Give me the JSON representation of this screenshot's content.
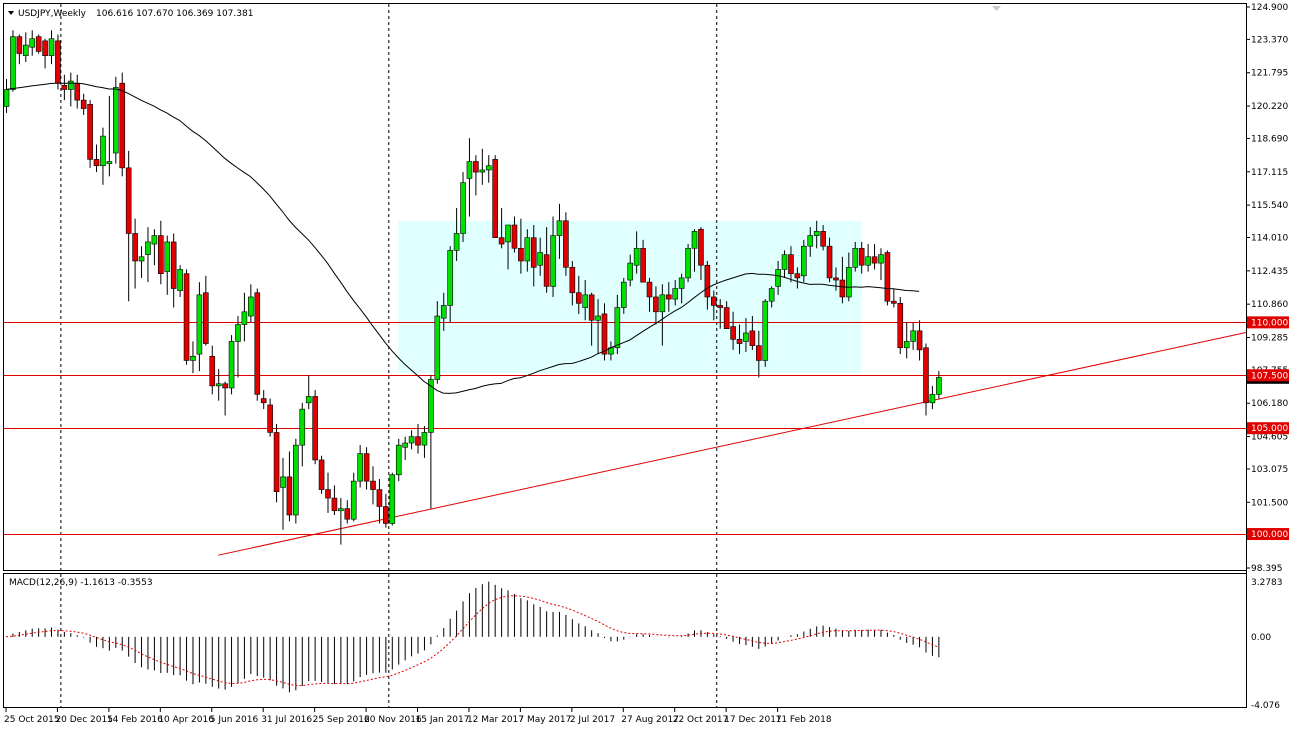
{
  "header": {
    "symbol": "USDJPY,Weekly",
    "ohlc": "106.616 107.670 106.369 107.381"
  },
  "macd_header": "MACD(12,26,9) -1.1613 -0.3553",
  "colors": {
    "bull": "#00e000",
    "bear": "#e00000",
    "ma": "#000000",
    "level": "#e00000",
    "range_box": "#e0ffff",
    "grid": "#000000",
    "macd_signal": "#e00000"
  },
  "chart_data": {
    "type": "candlestick",
    "timeframe": "Weekly",
    "price_axis": {
      "range": [
        98.395,
        124.9
      ],
      "labels": [
        "124.900",
        "123.370",
        "121.795",
        "120.220",
        "118.690",
        "117.115",
        "115.540",
        "114.010",
        "112.435",
        "110.860",
        "109.285",
        "107.755",
        "106.180",
        "104.605",
        "103.075",
        "101.500",
        "98.395"
      ]
    },
    "time_axis": {
      "labels": [
        "25 Oct 2015",
        "20 Dec 2015",
        "14 Feb 2016",
        "10 Apr 2016",
        "5 Jun 2016",
        "31 Jul 2016",
        "25 Sep 2016",
        "20 Nov 2016",
        "15 Jan 2017",
        "12 Mar 2017",
        "7 May 2017",
        "2 Jul 2017",
        "27 Aug 2017",
        "22 Oct 2017",
        "17 Dec 2017",
        "11 Feb 2018"
      ]
    },
    "horizontal_levels": [
      {
        "price": 110.0,
        "label": "110.000"
      },
      {
        "price": 107.5,
        "label": "107.500"
      },
      {
        "price": 105.0,
        "label": "105.000"
      },
      {
        "price": 100.0,
        "label": "100.000"
      }
    ],
    "current_price": {
      "price": 107.381,
      "label": "107.381"
    },
    "range_box": {
      "from_index": 61,
      "to_index": 133,
      "price_low": 107.6,
      "price_high": 114.8
    },
    "trendline": {
      "from_index": 33,
      "from_price": 99.0,
      "to_index": 153,
      "to_price": 106.9
    },
    "vertical_separators": [
      9,
      60,
      111
    ],
    "candles": [
      [
        120.2,
        121.5,
        119.9,
        121.0
      ],
      [
        121.0,
        123.8,
        120.9,
        123.5
      ],
      [
        123.5,
        123.6,
        122.2,
        122.7
      ],
      [
        122.6,
        123.7,
        122.3,
        123.1
      ],
      [
        123.0,
        123.8,
        122.6,
        123.4
      ],
      [
        123.5,
        123.6,
        122.7,
        122.8
      ],
      [
        123.3,
        123.4,
        122.0,
        122.6
      ],
      [
        122.6,
        123.8,
        122.2,
        123.4
      ],
      [
        123.3,
        123.6,
        121.0,
        121.3
      ],
      [
        121.2,
        121.7,
        120.5,
        121.0
      ],
      [
        121.0,
        121.8,
        120.2,
        121.4
      ],
      [
        121.3,
        121.7,
        120.1,
        120.5
      ],
      [
        120.5,
        120.8,
        119.8,
        120.1
      ],
      [
        120.3,
        120.5,
        117.3,
        117.7
      ],
      [
        117.7,
        118.4,
        117.1,
        117.4
      ],
      [
        117.4,
        119.2,
        116.5,
        118.8
      ],
      [
        117.5,
        120.7,
        116.9,
        117.6
      ],
      [
        118.0,
        121.6,
        117.5,
        121.1
      ],
      [
        121.3,
        121.8,
        116.9,
        117.3
      ],
      [
        117.3,
        118.1,
        111.0,
        114.2
      ],
      [
        114.2,
        114.9,
        111.6,
        112.9
      ],
      [
        112.9,
        113.6,
        112.1,
        113.1
      ],
      [
        113.2,
        114.5,
        111.9,
        113.8
      ],
      [
        113.7,
        114.4,
        112.7,
        114.1
      ],
      [
        114.1,
        114.8,
        111.8,
        112.3
      ],
      [
        112.4,
        114.1,
        111.3,
        113.8
      ],
      [
        113.8,
        114.2,
        110.7,
        111.6
      ],
      [
        111.5,
        112.7,
        111.2,
        112.5
      ],
      [
        112.3,
        112.5,
        108.0,
        108.2
      ],
      [
        108.2,
        109.1,
        107.6,
        108.4
      ],
      [
        108.5,
        111.9,
        107.7,
        111.3
      ],
      [
        111.4,
        112.2,
        108.9,
        109.0
      ],
      [
        108.4,
        108.9,
        106.6,
        107.0
      ],
      [
        107.0,
        107.8,
        106.3,
        107.1
      ],
      [
        107.1,
        107.2,
        105.6,
        106.9
      ],
      [
        106.9,
        109.4,
        106.6,
        109.1
      ],
      [
        109.1,
        110.3,
        107.4,
        109.9
      ],
      [
        109.9,
        111.4,
        109.1,
        110.5
      ],
      [
        110.3,
        111.8,
        110.0,
        111.2
      ],
      [
        111.4,
        111.6,
        106.3,
        106.6
      ],
      [
        106.4,
        106.8,
        105.9,
        106.2
      ],
      [
        106.1,
        106.4,
        104.6,
        104.8
      ],
      [
        104.8,
        105.2,
        101.5,
        102.0
      ],
      [
        102.2,
        103.6,
        100.2,
        102.7
      ],
      [
        102.7,
        103.9,
        100.6,
        100.9
      ],
      [
        100.9,
        104.5,
        100.5,
        104.2
      ],
      [
        104.2,
        106.2,
        103.2,
        105.9
      ],
      [
        106.2,
        107.5,
        105.9,
        106.5
      ],
      [
        106.5,
        106.8,
        103.3,
        103.5
      ],
      [
        103.5,
        103.7,
        101.9,
        102.1
      ],
      [
        102.1,
        102.9,
        101.0,
        101.7
      ],
      [
        101.7,
        102.3,
        100.9,
        101.1
      ],
      [
        101.1,
        101.7,
        99.5,
        101.2
      ],
      [
        101.2,
        101.6,
        100.5,
        100.7
      ],
      [
        100.7,
        102.9,
        100.6,
        102.5
      ],
      [
        102.5,
        104.2,
        102.2,
        103.8
      ],
      [
        103.8,
        104.1,
        102.1,
        102.5
      ],
      [
        102.5,
        103.2,
        101.4,
        102.1
      ],
      [
        102.1,
        102.6,
        100.5,
        101.3
      ],
      [
        101.3,
        101.9,
        100.3,
        100.5
      ],
      [
        100.5,
        102.9,
        100.4,
        102.8
      ],
      [
        102.8,
        104.5,
        102.5,
        104.2
      ],
      [
        104.1,
        104.6,
        103.5,
        104.3
      ],
      [
        104.3,
        104.9,
        104.0,
        104.6
      ],
      [
        104.6,
        105.2,
        103.8,
        104.2
      ],
      [
        104.2,
        105.1,
        103.6,
        104.8
      ],
      [
        104.8,
        107.5,
        101.2,
        107.3
      ],
      [
        107.3,
        111.0,
        107.1,
        110.3
      ],
      [
        110.2,
        111.4,
        109.6,
        110.8
      ],
      [
        110.8,
        113.6,
        110.0,
        113.4
      ],
      [
        113.4,
        115.4,
        112.9,
        114.2
      ],
      [
        114.2,
        117.1,
        113.8,
        116.6
      ],
      [
        116.8,
        118.7,
        115.0,
        117.6
      ],
      [
        117.6,
        117.9,
        116.0,
        117.1
      ],
      [
        117.1,
        118.2,
        116.5,
        117.2
      ],
      [
        117.2,
        117.9,
        116.6,
        117.4
      ],
      [
        117.7,
        117.9,
        114.0,
        114.0
      ],
      [
        114.0,
        115.4,
        113.5,
        113.7
      ],
      [
        113.8,
        114.6,
        112.5,
        114.6
      ],
      [
        114.6,
        115.0,
        113.3,
        113.5
      ],
      [
        113.5,
        114.9,
        112.3,
        112.9
      ],
      [
        112.9,
        114.4,
        112.4,
        114.0
      ],
      [
        114.0,
        114.6,
        111.7,
        112.6
      ],
      [
        112.7,
        114.0,
        112.2,
        113.3
      ],
      [
        113.2,
        114.5,
        111.4,
        111.7
      ],
      [
        111.7,
        115.0,
        111.2,
        114.1
      ],
      [
        114.1,
        115.6,
        113.0,
        114.8
      ],
      [
        114.8,
        115.2,
        112.2,
        112.6
      ],
      [
        112.6,
        112.9,
        110.8,
        111.4
      ],
      [
        111.4,
        112.2,
        110.4,
        110.9
      ],
      [
        110.7,
        112.0,
        110.1,
        111.3
      ],
      [
        111.3,
        111.4,
        108.9,
        110.1
      ],
      [
        110.1,
        111.1,
        108.5,
        110.3
      ],
      [
        110.4,
        110.9,
        108.2,
        108.5
      ],
      [
        108.5,
        109.1,
        108.2,
        108.8
      ],
      [
        108.8,
        111.3,
        108.5,
        110.7
      ],
      [
        110.7,
        112.1,
        110.4,
        111.9
      ],
      [
        112.0,
        113.2,
        111.7,
        112.8
      ],
      [
        112.7,
        114.3,
        112.3,
        113.5
      ],
      [
        113.5,
        113.9,
        111.9,
        111.9
      ],
      [
        111.9,
        112.1,
        110.5,
        111.2
      ],
      [
        111.2,
        111.7,
        109.9,
        110.5
      ],
      [
        110.5,
        111.8,
        108.9,
        111.3
      ],
      [
        111.3,
        111.9,
        110.5,
        111.1
      ],
      [
        111.1,
        112.0,
        110.8,
        111.6
      ],
      [
        111.6,
        112.3,
        110.9,
        112.1
      ],
      [
        112.1,
        113.7,
        111.9,
        113.5
      ],
      [
        113.5,
        114.4,
        112.4,
        114.3
      ],
      [
        114.4,
        114.5,
        112.0,
        112.7
      ],
      [
        112.7,
        112.9,
        110.6,
        111.2
      ],
      [
        111.2,
        111.5,
        110.1,
        110.8
      ],
      [
        110.8,
        111.1,
        109.7,
        110.7
      ],
      [
        110.7,
        111.0,
        109.9,
        109.7
      ],
      [
        109.8,
        110.5,
        108.7,
        109.2
      ],
      [
        109.2,
        109.9,
        108.5,
        109.0
      ],
      [
        109.1,
        110.2,
        108.6,
        109.5
      ],
      [
        109.6,
        110.3,
        108.7,
        108.9
      ],
      [
        108.9,
        109.6,
        107.4,
        108.2
      ],
      [
        108.2,
        111.1,
        107.9,
        111.0
      ],
      [
        111.0,
        111.7,
        110.7,
        111.6
      ],
      [
        111.7,
        112.9,
        111.3,
        112.5
      ],
      [
        112.5,
        113.4,
        112.1,
        113.2
      ],
      [
        113.2,
        113.6,
        111.9,
        112.3
      ],
      [
        112.3,
        112.6,
        111.6,
        112.1
      ],
      [
        112.2,
        113.9,
        111.9,
        113.6
      ],
      [
        113.6,
        114.5,
        113.1,
        114.1
      ],
      [
        114.1,
        114.8,
        113.5,
        114.3
      ],
      [
        114.3,
        114.6,
        113.4,
        113.6
      ],
      [
        113.6,
        114.0,
        111.9,
        112.1
      ],
      [
        112.1,
        112.6,
        111.5,
        112.0
      ],
      [
        112.0,
        113.1,
        110.9,
        111.2
      ],
      [
        111.2,
        113.3,
        111.0,
        112.6
      ],
      [
        112.6,
        113.8,
        112.4,
        113.5
      ],
      [
        113.5,
        113.8,
        112.3,
        112.7
      ],
      [
        112.7,
        113.7,
        112.4,
        113.1
      ],
      [
        113.1,
        113.7,
        112.5,
        112.8
      ],
      [
        112.8,
        113.5,
        112.0,
        113.2
      ],
      [
        113.3,
        113.4,
        110.8,
        111.0
      ],
      [
        111.0,
        111.6,
        110.7,
        110.9
      ],
      [
        110.9,
        111.2,
        108.5,
        108.8
      ],
      [
        108.8,
        110.0,
        108.3,
        109.1
      ],
      [
        109.1,
        110.0,
        108.7,
        109.6
      ],
      [
        109.6,
        110.1,
        108.2,
        108.7
      ],
      [
        108.8,
        109.0,
        105.6,
        106.2
      ],
      [
        106.2,
        107.0,
        105.9,
        106.6
      ],
      [
        106.6,
        107.7,
        106.4,
        107.4
      ]
    ],
    "ma_start_price": 121.0,
    "macd": {
      "title": "MACD(12,26,9)",
      "values": [
        -1.1613,
        -0.3553
      ],
      "axis_range": [
        -4.076,
        3.2783
      ],
      "axis_labels": [
        "3.2783",
        "0.00",
        "-4.076"
      ]
    }
  }
}
